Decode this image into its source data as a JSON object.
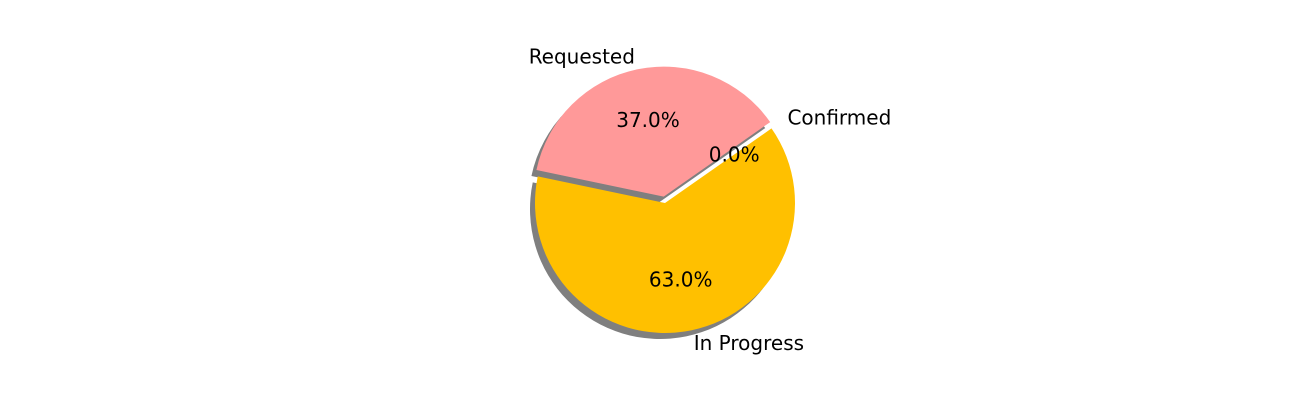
{
  "chart_data": {
    "type": "pie",
    "title": "",
    "slices": [
      {
        "label": "Confirmed",
        "value": 0.0,
        "pct_label": "0.0%",
        "color": "#5b9bd5",
        "explode": 0.05
      },
      {
        "label": "Requested",
        "value": 37.0,
        "pct_label": "37.0%",
        "color": "#ff9999",
        "explode": 0.05
      },
      {
        "label": "In Progress",
        "value": 63.0,
        "pct_label": "63.0%",
        "color": "#ffc000",
        "explode": 0.0
      }
    ],
    "start_angle_deg": 35,
    "direction": "counterclockwise",
    "shadow": true,
    "shadow_color": "#7f7f7f"
  }
}
